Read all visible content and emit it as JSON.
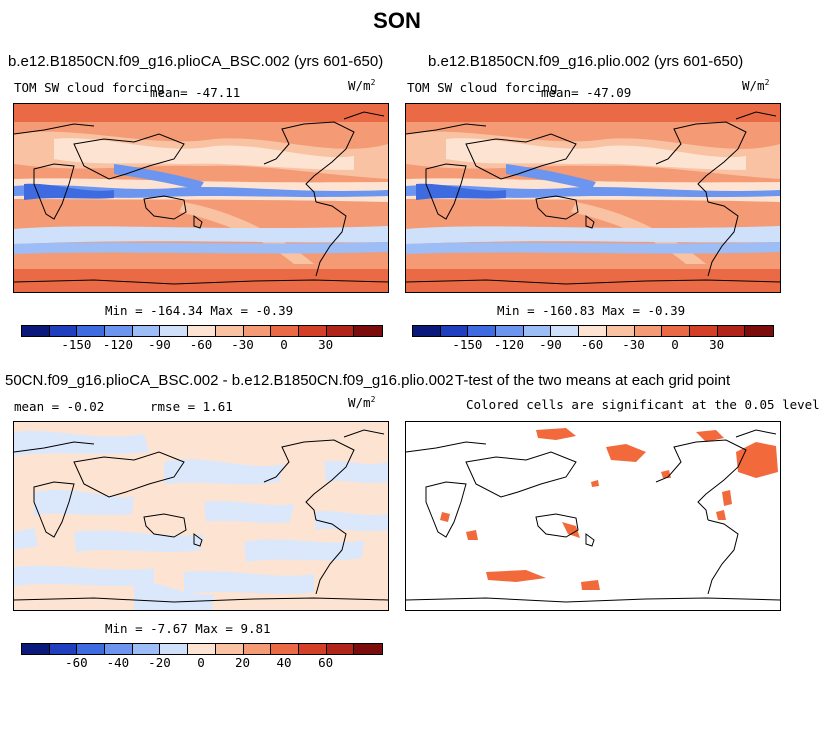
{
  "figure": {
    "title": "SON"
  },
  "panels": [
    {
      "title": "b.e12.B1850CN.f09_g16.plioCA_BSC.002 (yrs 601-650)",
      "left_label": "TOM SW cloud forcing",
      "mean_label": "mean= -47.11",
      "units": "W/m",
      "units_sup": "2",
      "minmax": "Min = -164.34 Max = -0.39"
    },
    {
      "title": "b.e12.B1850CN.f09_g16.plio.002 (yrs 601-650)",
      "left_label": "TOM SW cloud forcing",
      "mean_label": "mean= -47.09",
      "units": "W/m",
      "units_sup": "2",
      "minmax": "Min = -160.83 Max = -0.39"
    },
    {
      "title": "50CN.f09_g16.plioCA_BSC.002 - b.e12.B1850CN.f09_g16.plio.002",
      "left_label": "mean = -0.02",
      "rmse_label": "rmse = 1.61",
      "units": "W/m",
      "units_sup": "2",
      "minmax": "Min = -7.67 Max = 9.81"
    },
    {
      "title": "T-test of the two means at each grid point",
      "subtitle": "Colored cells are significant at the 0.05 level"
    }
  ],
  "colorbars": {
    "colors": [
      "#0b1a7a",
      "#1f3fbf",
      "#3f6be0",
      "#6b95ee",
      "#9dbdf6",
      "#cfe0fb",
      "#fde3d2",
      "#f9c2a3",
      "#f49a74",
      "#ea6a46",
      "#d43f28",
      "#b0241a",
      "#7c0d0d"
    ],
    "top_ticks": [
      "-150",
      "-120",
      "-90",
      "-60",
      "-30",
      "0",
      "30"
    ],
    "diff_ticks": [
      "-60",
      "-40",
      "-20",
      "0",
      "20",
      "40",
      "60"
    ]
  },
  "map_colors": {
    "land_outline": "#000000",
    "significant": "#f26a3c",
    "diff_pos": "#fde3d2",
    "diff_neg": "#dbe8fb"
  }
}
